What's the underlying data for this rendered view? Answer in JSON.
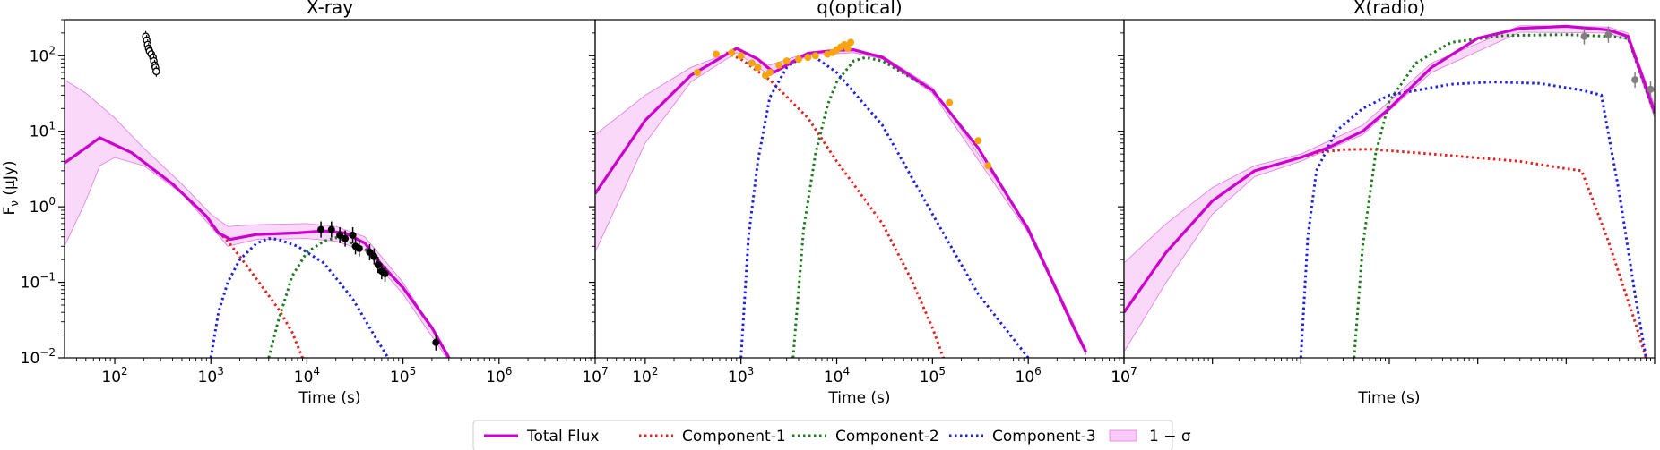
{
  "chart_data": {
    "type": "line",
    "xscale": "log",
    "yscale": "log",
    "xlim": [
      30,
      10000000
    ],
    "ylim": [
      0.01,
      300
    ],
    "xlabel": "Time (s)",
    "ylabel_base": "F",
    "ylabel_sub": "ν",
    "ylabel_unit": " (μJy)",
    "x_ticks": [
      {
        "value": 100,
        "base": "10",
        "exp": "2"
      },
      {
        "value": 1000,
        "base": "10",
        "exp": "3"
      },
      {
        "value": 10000,
        "base": "10",
        "exp": "4"
      },
      {
        "value": 100000,
        "base": "10",
        "exp": "5"
      },
      {
        "value": 1000000,
        "base": "10",
        "exp": "6"
      },
      {
        "value": 10000000,
        "base": "10",
        "exp": "7"
      }
    ],
    "y_ticks": [
      {
        "value": 0.01,
        "base": "10",
        "exp": "−2"
      },
      {
        "value": 0.1,
        "base": "10",
        "exp": "−1"
      },
      {
        "value": 1,
        "base": "10",
        "exp": "0"
      },
      {
        "value": 10,
        "base": "10",
        "exp": "1"
      },
      {
        "value": 100,
        "base": "10",
        "exp": "2"
      }
    ],
    "legend": {
      "placement": "bottom-center",
      "entries": [
        {
          "label": "Total Flux",
          "style": "solid",
          "color": "#cc00cc"
        },
        {
          "label": "Component-1",
          "style": "dotted",
          "color": "#e8211f"
        },
        {
          "label": "Component-2",
          "style": "dotted",
          "color": "#1d7a1d"
        },
        {
          "label": "Component-3",
          "style": "dotted",
          "color": "#1f1fe8"
        },
        {
          "label": "1 − σ",
          "style": "band",
          "color": "#f4b8f4"
        }
      ]
    },
    "panels": [
      {
        "title": "X-ray",
        "total": [
          [
            30,
            3.8
          ],
          [
            70,
            8.2
          ],
          [
            150,
            5.2
          ],
          [
            400,
            2.0
          ],
          [
            900,
            0.75
          ],
          [
            1200,
            0.45
          ],
          [
            1600,
            0.37
          ],
          [
            3000,
            0.43
          ],
          [
            8000,
            0.45
          ],
          [
            15000,
            0.48
          ],
          [
            25000,
            0.45
          ],
          [
            40000,
            0.33
          ],
          [
            60000,
            0.17
          ],
          [
            100000,
            0.085
          ],
          [
            200000,
            0.025
          ],
          [
            300000,
            0.01
          ]
        ],
        "band_upper": [
          [
            30,
            48
          ],
          [
            50,
            32
          ],
          [
            100,
            15
          ],
          [
            200,
            6
          ],
          [
            500,
            2.0
          ],
          [
            1000,
            0.8
          ],
          [
            1500,
            0.55
          ],
          [
            3000,
            0.58
          ],
          [
            10000,
            0.6
          ],
          [
            20000,
            0.55
          ],
          [
            40000,
            0.4
          ],
          [
            100000,
            0.1
          ],
          [
            300000,
            0.011
          ]
        ],
        "band_lower": [
          [
            30,
            0.3
          ],
          [
            50,
            1.2
          ],
          [
            70,
            3.5
          ],
          [
            100,
            4.5
          ],
          [
            200,
            3.5
          ],
          [
            500,
            1.5
          ],
          [
            1000,
            0.55
          ],
          [
            1500,
            0.3
          ],
          [
            3000,
            0.37
          ],
          [
            10000,
            0.38
          ],
          [
            20000,
            0.35
          ],
          [
            40000,
            0.26
          ],
          [
            100000,
            0.07
          ],
          [
            300000,
            0.009
          ]
        ],
        "comp1": [
          [
            1000,
            0.58
          ],
          [
            1500,
            0.35
          ],
          [
            2000,
            0.22
          ],
          [
            3000,
            0.11
          ],
          [
            5000,
            0.045
          ],
          [
            7000,
            0.022
          ],
          [
            9000,
            0.01
          ]
        ],
        "comp2": [
          [
            4000,
            0.01
          ],
          [
            5000,
            0.03
          ],
          [
            7000,
            0.12
          ],
          [
            10000,
            0.25
          ],
          [
            15000,
            0.35
          ],
          [
            20000,
            0.39
          ],
          [
            25000,
            0.36
          ],
          [
            40000,
            0.28
          ],
          [
            60000,
            0.17
          ],
          [
            100000,
            0.085
          ],
          [
            200000,
            0.025
          ],
          [
            300000,
            0.01
          ]
        ],
        "comp3": [
          [
            1000,
            0.01
          ],
          [
            1200,
            0.04
          ],
          [
            1500,
            0.1
          ],
          [
            2000,
            0.2
          ],
          [
            3000,
            0.33
          ],
          [
            4000,
            0.38
          ],
          [
            5000,
            0.37
          ],
          [
            8000,
            0.3
          ],
          [
            15000,
            0.18
          ],
          [
            30000,
            0.06
          ],
          [
            50000,
            0.02
          ],
          [
            70000,
            0.01
          ]
        ],
        "points_filled": [
          [
            14000,
            0.5
          ],
          [
            18000,
            0.5
          ],
          [
            22000,
            0.42
          ],
          [
            25000,
            0.38
          ],
          [
            30000,
            0.42
          ],
          [
            32000,
            0.3
          ],
          [
            35000,
            0.28
          ],
          [
            45000,
            0.25
          ],
          [
            50000,
            0.22
          ],
          [
            55000,
            0.17
          ],
          [
            60000,
            0.14
          ],
          [
            65000,
            0.13
          ],
          [
            220000,
            0.016
          ]
        ],
        "points_open": [
          [
            210,
            180
          ],
          [
            215,
            160
          ],
          [
            220,
            140
          ],
          [
            225,
            125
          ],
          [
            230,
            115
          ],
          [
            240,
            105
          ],
          [
            250,
            95
          ],
          [
            255,
            85
          ],
          [
            260,
            75
          ],
          [
            265,
            70
          ],
          [
            270,
            62
          ]
        ]
      },
      {
        "title": "q(optical)",
        "total": [
          [
            30,
            1.5
          ],
          [
            100,
            14
          ],
          [
            300,
            55
          ],
          [
            900,
            125
          ],
          [
            1500,
            90
          ],
          [
            2200,
            60
          ],
          [
            3000,
            75
          ],
          [
            5000,
            108
          ],
          [
            8000,
            115
          ],
          [
            10000,
            118
          ],
          [
            15000,
            120
          ],
          [
            30000,
            95
          ],
          [
            100000,
            35
          ],
          [
            300000,
            6
          ],
          [
            1000000,
            0.5
          ],
          [
            3000000,
            0.025
          ],
          [
            4000000,
            0.012
          ]
        ],
        "band_upper": [
          [
            30,
            9
          ],
          [
            100,
            30
          ],
          [
            300,
            70
          ],
          [
            900,
            120
          ],
          [
            2000,
            75
          ],
          [
            5000,
            110
          ],
          [
            15000,
            120
          ],
          [
            30000,
            100
          ],
          [
            100000,
            38
          ],
          [
            1000000,
            0.55
          ],
          [
            4000000,
            0.013
          ]
        ],
        "band_lower": [
          [
            30,
            0.25
          ],
          [
            100,
            7
          ],
          [
            300,
            45
          ],
          [
            900,
            110
          ],
          [
            2000,
            55
          ],
          [
            5000,
            100
          ],
          [
            15000,
            110
          ],
          [
            30000,
            90
          ],
          [
            100000,
            32
          ],
          [
            1000000,
            0.45
          ],
          [
            4000000,
            0.011
          ]
        ],
        "comp1": [
          [
            700,
            110
          ],
          [
            1000,
            90
          ],
          [
            2000,
            48
          ],
          [
            5000,
            15
          ],
          [
            10000,
            4
          ],
          [
            30000,
            0.6
          ],
          [
            60000,
            0.11
          ],
          [
            100000,
            0.025
          ],
          [
            130000,
            0.01
          ]
        ],
        "comp2": [
          [
            3500,
            0.01
          ],
          [
            4500,
            0.5
          ],
          [
            6000,
            5
          ],
          [
            8000,
            22
          ],
          [
            10000,
            45
          ],
          [
            15000,
            85
          ],
          [
            20000,
            95
          ],
          [
            30000,
            85
          ],
          [
            100000,
            35
          ],
          [
            300000,
            6
          ],
          [
            1000000,
            0.5
          ],
          [
            3000000,
            0.025
          ],
          [
            4000000,
            0.012
          ]
        ],
        "comp3": [
          [
            1000,
            0.01
          ],
          [
            1200,
            0.4
          ],
          [
            1500,
            4
          ],
          [
            2000,
            28
          ],
          [
            3000,
            70
          ],
          [
            4500,
            100
          ],
          [
            6000,
            95
          ],
          [
            10000,
            60
          ],
          [
            30000,
            12
          ],
          [
            100000,
            0.8
          ],
          [
            300000,
            0.07
          ],
          [
            1000000,
            0.01
          ]
        ],
        "points_filled": [
          [
            350,
            60
          ],
          [
            550,
            105
          ],
          [
            800,
            110
          ],
          [
            1000,
            100
          ],
          [
            1300,
            80
          ],
          [
            1500,
            70
          ],
          [
            1800,
            55
          ],
          [
            2000,
            60
          ],
          [
            2500,
            75
          ],
          [
            3000,
            85
          ],
          [
            4000,
            90
          ],
          [
            5000,
            95
          ],
          [
            6000,
            100
          ],
          [
            8000,
            105
          ],
          [
            9000,
            110
          ],
          [
            10000,
            120
          ],
          [
            11000,
            130
          ],
          [
            12000,
            140
          ],
          [
            13000,
            125
          ],
          [
            14000,
            150
          ],
          [
            150000,
            24
          ],
          [
            300000,
            7.5
          ],
          [
            380000,
            3.5
          ]
        ]
      },
      {
        "title": "X(radio)",
        "total": [
          [
            10000000,
            0.04
          ],
          [
            30000000,
            0.25
          ],
          [
            100000000,
            1.2
          ],
          [
            300000000,
            3
          ],
          [
            1000000000,
            4.5
          ],
          [
            2000000000,
            6
          ],
          [
            5000000000,
            10
          ],
          [
            10000000000,
            20
          ],
          [
            30000000000,
            70
          ],
          [
            100000000000,
            170
          ],
          [
            300000000000,
            230
          ],
          [
            1000000000000,
            245
          ],
          [
            3000000000000,
            220
          ],
          [
            5000000000000,
            180
          ],
          [
            7000000000000,
            60
          ],
          [
            10000000000000,
            18
          ]
        ],
        "band_upper": [
          [
            10000000,
            0.18
          ],
          [
            30000000,
            0.6
          ],
          [
            100000000,
            1.8
          ],
          [
            300000000,
            3.5
          ],
          [
            1000000000,
            5
          ],
          [
            5000000000,
            12
          ],
          [
            30000000000,
            80
          ],
          [
            300000000000,
            250
          ],
          [
            3000000000000,
            240
          ],
          [
            5000000000000,
            200
          ],
          [
            10000000000000,
            22
          ]
        ],
        "band_lower": [
          [
            10000000,
            0.012
          ],
          [
            30000000,
            0.1
          ],
          [
            100000000,
            0.8
          ],
          [
            300000000,
            2.5
          ],
          [
            1000000000,
            4
          ],
          [
            5000000000,
            9
          ],
          [
            30000000000,
            60
          ],
          [
            300000000000,
            205
          ],
          [
            3000000000000,
            200
          ],
          [
            5000000000000,
            160
          ],
          [
            10000000000000,
            15
          ]
        ],
        "comp1": [
          [
            1000000000,
            4.5
          ],
          [
            1500000000,
            5.2
          ],
          [
            3000000000,
            5.7
          ],
          [
            6000000000,
            5.8
          ],
          [
            30000000000,
            5
          ],
          [
            300000000000,
            4
          ],
          [
            1000000000000,
            3.2
          ],
          [
            1500000000000,
            3
          ],
          [
            3000000000000,
            0.35
          ],
          [
            6000000000000,
            0.03
          ],
          [
            8000000000000,
            0.01
          ]
        ],
        "comp2": [
          [
            4000000000,
            0.01
          ],
          [
            5000000000,
            0.3
          ],
          [
            7000000000,
            5
          ],
          [
            10000000000,
            25
          ],
          [
            20000000000,
            80
          ],
          [
            50000000000,
            150
          ],
          [
            200000000000,
            185
          ],
          [
            1000000000000,
            190
          ],
          [
            3000000000000,
            180
          ],
          [
            5000000000000,
            170
          ],
          [
            10000000000000,
            17
          ]
        ],
        "comp3": [
          [
            1000000000,
            0.01
          ],
          [
            1200000000,
            0.4
          ],
          [
            1500000000,
            3
          ],
          [
            2500000000,
            10
          ],
          [
            5000000000,
            20
          ],
          [
            10000000000,
            30
          ],
          [
            50000000000,
            42
          ],
          [
            150000000000,
            45
          ],
          [
            500000000000,
            43
          ],
          [
            1500000000000,
            35
          ],
          [
            2500000000000,
            30
          ],
          [
            4000000000000,
            1.5
          ],
          [
            6000000000000,
            0.07
          ],
          [
            8000000000000,
            0.01
          ]
        ],
        "points_filled": [
          [
            1600000000000,
            180
          ],
          [
            3000000000000,
            190
          ],
          [
            6000000000000,
            48
          ],
          [
            9000000000000,
            36
          ]
        ]
      }
    ]
  }
}
